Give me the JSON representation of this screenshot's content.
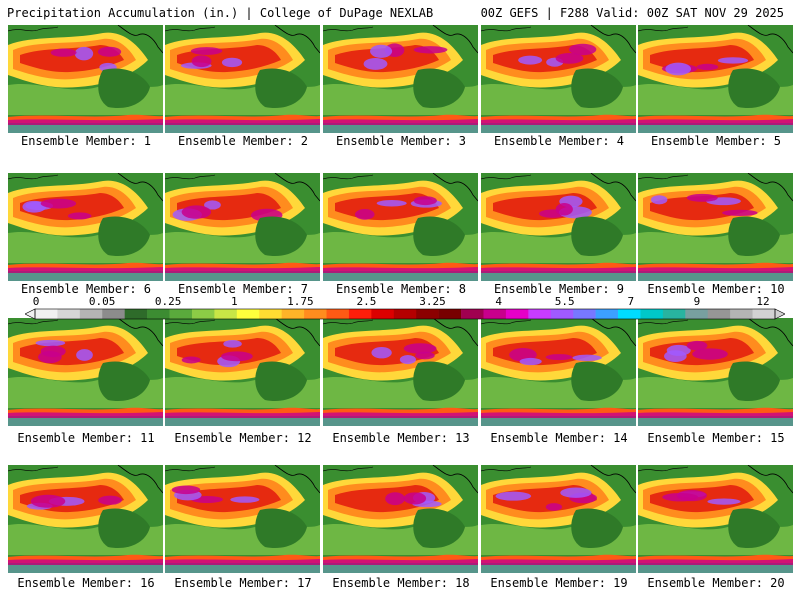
{
  "header": {
    "title": "Precipitation Accumulation (in.) | College of DuPage NEXLAB",
    "run_info": "00Z GEFS | F288 Valid: 00Z SAT NOV 29 2025"
  },
  "members": [
    {
      "label": "Ensemble Member: 1"
    },
    {
      "label": "Ensemble Member: 2"
    },
    {
      "label": "Ensemble Member: 3"
    },
    {
      "label": "Ensemble Member: 4"
    },
    {
      "label": "Ensemble Member: 5"
    },
    {
      "label": "Ensemble Member: 6"
    },
    {
      "label": "Ensemble Member: 7"
    },
    {
      "label": "Ensemble Member: 8"
    },
    {
      "label": "Ensemble Member: 9"
    },
    {
      "label": "Ensemble Member: 10"
    },
    {
      "label": "Ensemble Member: 11"
    },
    {
      "label": "Ensemble Member: 12"
    },
    {
      "label": "Ensemble Member: 13"
    },
    {
      "label": "Ensemble Member: 14"
    },
    {
      "label": "Ensemble Member: 15"
    },
    {
      "label": "Ensemble Member: 16"
    },
    {
      "label": "Ensemble Member: 17"
    },
    {
      "label": "Ensemble Member: 18"
    },
    {
      "label": "Ensemble Member: 19"
    },
    {
      "label": "Ensemble Member: 20"
    }
  ],
  "colorbar": {
    "tick_labels": [
      "0",
      "0.05",
      "0.25",
      "1",
      "1.75",
      "2.5",
      "3.25",
      "4",
      "5.5",
      "7",
      "9",
      "12"
    ],
    "colors": [
      "#f0f0f0",
      "#d6d6d6",
      "#b4b4b4",
      "#8c8c8c",
      "#2e6b2a",
      "#3c8c32",
      "#5aaa3c",
      "#8ccc46",
      "#c8e646",
      "#ffff3c",
      "#ffdc32",
      "#ffb428",
      "#ff8c1e",
      "#ff5a14",
      "#ff1e0a",
      "#dc0000",
      "#b40000",
      "#8c0000",
      "#780000",
      "#a00050",
      "#c8008c",
      "#e600c8",
      "#c83cff",
      "#a05aff",
      "#7878ff",
      "#3ca0ff",
      "#00dcff",
      "#00c8c8",
      "#28b4a0",
      "#78a0a0",
      "#969696",
      "#b4b4b4",
      "#d2d2d2"
    ]
  }
}
